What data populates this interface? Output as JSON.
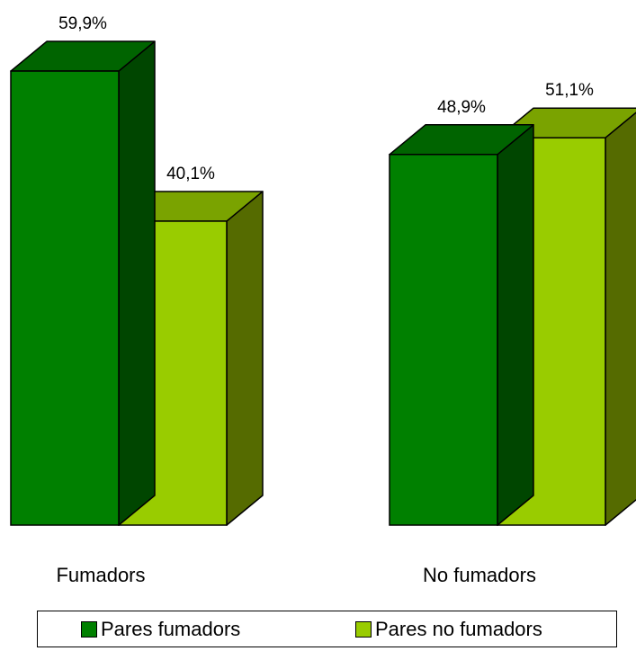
{
  "chart_data": {
    "type": "bar",
    "categories": [
      "Fumadors",
      "No fumadors"
    ],
    "series": [
      {
        "name": "Pares fumadors",
        "values": [
          59.9,
          48.9
        ],
        "labels": [
          "59,9%",
          "48,9%"
        ]
      },
      {
        "name": "Pares no fumadors",
        "values": [
          40.1,
          51.1
        ],
        "labels": [
          "40,1%",
          "51,1%"
        ]
      }
    ],
    "title": "",
    "xlabel": "",
    "ylabel": "",
    "ylim": [
      0,
      64
    ],
    "grid": false,
    "legend": "bottom",
    "colors": {
      "series": [
        "#008000",
        "#99CC00"
      ],
      "series_top": [
        "#006400",
        "#7AA300"
      ],
      "series_side": [
        "#004600",
        "#556B00"
      ]
    }
  }
}
